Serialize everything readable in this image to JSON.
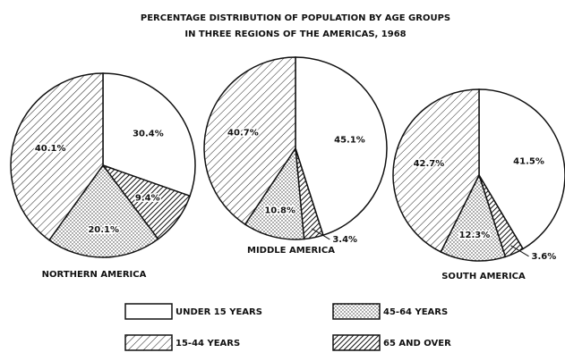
{
  "title": [
    "PERCENTAGE DISTRIBUTION OF POPULATION BY AGE GROUPS",
    "IN THREE REGIONS OF THE AMERICAS, 1968"
  ],
  "chart_data": [
    {
      "type": "pie",
      "title": "NORTHERN AMERICA",
      "categories": [
        "UNDER 15 YEARS",
        "65 AND OVER",
        "45-64 YEARS",
        "15-44 YEARS"
      ],
      "values": [
        30.4,
        9.4,
        20.1,
        40.1
      ],
      "value_labels": [
        "30.4%",
        "9.4%",
        "20.1%",
        "40.1%"
      ]
    },
    {
      "type": "pie",
      "title": "MIDDLE AMERICA",
      "categories": [
        "UNDER 15 YEARS",
        "65 AND OVER",
        "45-64 YEARS",
        "15-44 YEARS"
      ],
      "values": [
        45.1,
        3.4,
        10.8,
        40.7
      ],
      "value_labels": [
        "45.1%",
        "3.4%",
        "10.8%",
        "40.7%"
      ]
    },
    {
      "type": "pie",
      "title": "SOUTH AMERICA",
      "categories": [
        "UNDER 15 YEARS",
        "65 AND OVER",
        "45-64 YEARS",
        "15-44 YEARS"
      ],
      "values": [
        41.5,
        3.6,
        12.3,
        42.7
      ],
      "value_labels": [
        "41.5%",
        "3.6%",
        "12.3%",
        "42.7%"
      ]
    }
  ]
}
